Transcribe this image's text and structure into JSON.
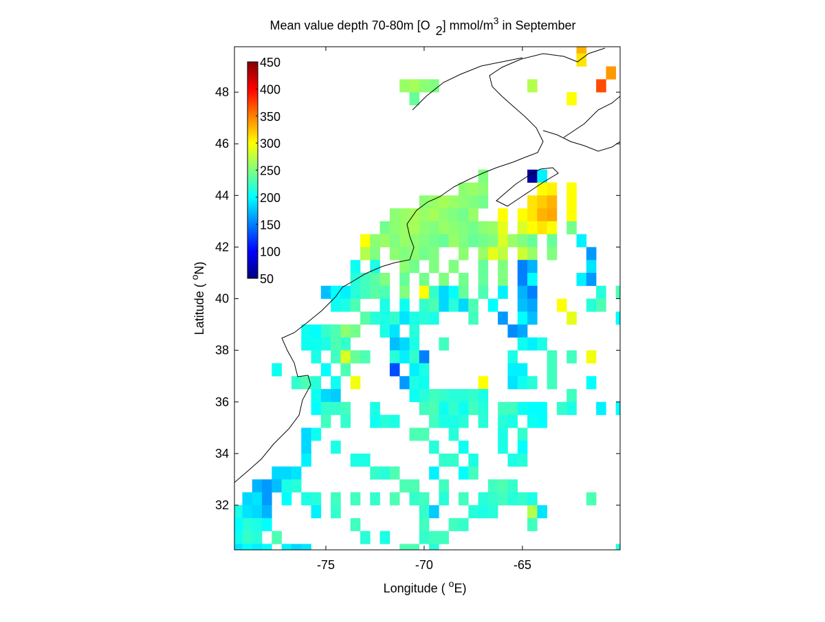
{
  "chart_data": {
    "type": "heatmap",
    "title": {
      "pre": "Mean value depth 70-80m [O",
      "sub": "2",
      "mid": "] mmol/m",
      "sup": "3",
      "post": " in September"
    },
    "x_label": {
      "pre": "Longitude ( ",
      "sup": "o",
      "post": "E)"
    },
    "y_label": {
      "pre": "Latitude ( ",
      "sup": "o",
      "post": "N)"
    },
    "xlim": [
      -79.65,
      -60.03
    ],
    "ylim": [
      30.27,
      49.76
    ],
    "xticks": [
      -75,
      -70,
      -65
    ],
    "yticks": [
      32,
      34,
      36,
      38,
      40,
      42,
      44,
      46,
      48
    ],
    "clim": [
      50,
      450
    ],
    "cticks": [
      50,
      100,
      150,
      200,
      250,
      300,
      350,
      400,
      450
    ],
    "colormap": "jet",
    "rows": [
      {
        "y": 49.75,
        "x": [
          -62
        ],
        "values": [
          330
        ]
      },
      {
        "y": 49.25,
        "x": [
          -62
        ],
        "values": [
          310
        ]
      },
      {
        "y": 48.75,
        "x": [
          -60.5
        ],
        "values": [
          340
        ]
      },
      {
        "y": 48.25,
        "x": [
          -71,
          -70.5,
          -70,
          -69.5,
          -64.5,
          -61
        ],
        "values": [
          260,
          265,
          255,
          250,
          270,
          370
        ]
      },
      {
        "y": 47.75,
        "x": [
          -70.5,
          -62.5
        ],
        "values": [
          240,
          300
        ]
      },
      {
        "y": 44.75,
        "x": [
          -67,
          -64.5,
          -64
        ],
        "values": [
          250,
          60,
          195
        ]
      },
      {
        "y": 44.25,
        "x": [
          -68,
          -67.5,
          -67,
          -64,
          -63.5,
          -62.5
        ],
        "values": [
          255,
          260,
          255,
          300,
          305,
          300
        ]
      },
      {
        "y": 43.75,
        "x": [
          -70,
          -69.5,
          -69,
          -68.5,
          -68,
          -67.5,
          -67,
          -64.5,
          -64,
          -63.5,
          -62.5
        ],
        "values": [
          255,
          260,
          265,
          260,
          255,
          250,
          245,
          310,
          320,
          330,
          300
        ]
      },
      {
        "y": 43.25,
        "x": [
          -71.5,
          -71,
          -70.5,
          -70,
          -69.5,
          -69,
          -68.5,
          -68,
          -67.5,
          -66,
          -65,
          -64.5,
          -64,
          -63.5,
          -62.5
        ],
        "values": [
          255,
          260,
          265,
          260,
          265,
          255,
          250,
          245,
          260,
          300,
          300,
          310,
          330,
          335,
          300
        ]
      },
      {
        "y": 42.75,
        "x": [
          -72,
          -71.5,
          -71,
          -70.5,
          -70,
          -69.5,
          -69,
          -68.5,
          -68,
          -67.5,
          -67,
          -66.5,
          -66,
          -65,
          -64.5,
          -64,
          -63.5,
          -62.5
        ],
        "values": [
          245,
          255,
          260,
          265,
          255,
          250,
          260,
          255,
          250,
          245,
          255,
          260,
          290,
          285,
          300,
          310,
          300,
          245
        ]
      },
      {
        "y": 42.25,
        "x": [
          -73,
          -72.5,
          -72,
          -71.5,
          -71,
          -70.5,
          -70,
          -69.5,
          -69,
          -68.5,
          -68,
          -67.5,
          -67,
          -66.5,
          -66,
          -65.5,
          -65,
          -64.5,
          -63.5,
          -62
        ],
        "values": [
          300,
          255,
          260,
          250,
          260,
          255,
          250,
          245,
          240,
          260,
          250,
          240,
          245,
          250,
          285,
          260,
          250,
          240,
          240,
          195
        ]
      },
      {
        "y": 41.75,
        "x": [
          -73,
          -72.5,
          -71.5,
          -71,
          -70.5,
          -70,
          -69.5,
          -68,
          -67,
          -66.5,
          -66,
          -65,
          -64.5,
          -63.5,
          -61.5
        ],
        "values": [
          270,
          250,
          255,
          250,
          255,
          245,
          250,
          255,
          260,
          290,
          275,
          280,
          260,
          250,
          160
        ]
      },
      {
        "y": 41.25,
        "x": [
          -73.5,
          -72.5,
          -71,
          -70.5,
          -69.5,
          -68.5,
          -67,
          -66,
          -65,
          -64.5,
          -61.5
        ],
        "values": [
          205,
          210,
          255,
          245,
          250,
          250,
          240,
          250,
          150,
          170,
          190
        ]
      },
      {
        "y": 40.75,
        "x": [
          -73.5,
          -73,
          -72.5,
          -72,
          -71,
          -70,
          -69,
          -68,
          -67,
          -66,
          -65,
          -64.5,
          -62,
          -61.5
        ],
        "values": [
          215,
          225,
          235,
          250,
          240,
          245,
          250,
          245,
          240,
          250,
          150,
          200,
          195,
          160
        ]
      },
      {
        "y": 40.25,
        "x": [
          -75,
          -74.5,
          -74,
          -73.5,
          -73,
          -72.5,
          -72,
          -71,
          -70,
          -69.5,
          -69,
          -68.5,
          -68,
          -67,
          -66,
          -65,
          -64.5,
          -61,
          -60
        ],
        "values": [
          175,
          200,
          195,
          215,
          225,
          235,
          230,
          250,
          300,
          220,
          185,
          200,
          240,
          230,
          195,
          170,
          150,
          215,
          230
        ]
      },
      {
        "y": 39.75,
        "x": [
          -74.5,
          -74,
          -73.5,
          -72,
          -71,
          -70,
          -69.5,
          -69,
          -68.5,
          -68,
          -67.5,
          -66.5,
          -65,
          -64.5,
          -63,
          -61.5,
          -61
        ],
        "values": [
          205,
          210,
          230,
          210,
          205,
          220,
          230,
          185,
          215,
          185,
          230,
          200,
          175,
          165,
          300,
          215,
          230
        ]
      },
      {
        "y": 39.25,
        "x": [
          -73,
          -72.5,
          -72,
          -71.5,
          -71,
          -70.5,
          -70,
          -69.5,
          -67.5,
          -66,
          -65,
          -64.5,
          -62.5,
          -60
        ],
        "values": [
          235,
          215,
          210,
          220,
          190,
          210,
          215,
          210,
          225,
          160,
          200,
          175,
          290,
          200
        ]
      },
      {
        "y": 38.75,
        "x": [
          -76,
          -75.5,
          -75,
          -74.5,
          -74,
          -73.5,
          -72,
          -71.5,
          -70.5,
          -65.5,
          -65
        ],
        "values": [
          205,
          200,
          220,
          230,
          255,
          245,
          210,
          190,
          215,
          155,
          165
        ]
      },
      {
        "y": 38.25,
        "x": [
          -76,
          -75.5,
          -75,
          -74.5,
          -74,
          -71.5,
          -71,
          -70.5,
          -69,
          -65,
          -64.5,
          -64
        ],
        "values": [
          205,
          205,
          210,
          230,
          220,
          175,
          185,
          210,
          225,
          205,
          195,
          210
        ]
      },
      {
        "y": 37.75,
        "x": [
          -75.5,
          -74.5,
          -74,
          -73.5,
          -73,
          -71.5,
          -71,
          -70.5,
          -70,
          -65.5,
          -63.5,
          -62.5,
          -61.5
        ],
        "values": [
          210,
          225,
          285,
          240,
          230,
          215,
          195,
          220,
          150,
          210,
          225,
          225,
          295
        ]
      },
      {
        "y": 37.25,
        "x": [
          -77.5,
          -75,
          -74,
          -71.5,
          -70.5,
          -70,
          -65.5,
          -65,
          -63.5
        ],
        "values": [
          205,
          200,
          230,
          130,
          195,
          210,
          195,
          195,
          225
        ]
      },
      {
        "y": 36.75,
        "x": [
          -76.5,
          -76,
          -75.5,
          -74.5,
          -73.5,
          -71,
          -70.5,
          -70,
          -67,
          -65.5,
          -65,
          -64.5,
          -63.5,
          -61.5
        ],
        "values": [
          220,
          230,
          215,
          205,
          295,
          160,
          210,
          205,
          300,
          190,
          205,
          215,
          225,
          200
        ]
      },
      {
        "y": 36.25,
        "x": [
          -75.5,
          -75,
          -74.5,
          -70.5,
          -70,
          -69.5,
          -69,
          -68.5,
          -68,
          -67.5,
          -67,
          -62.5
        ],
        "values": [
          205,
          185,
          180,
          205,
          215,
          225,
          220,
          215,
          215,
          220,
          210,
          225
        ]
      },
      {
        "y": 35.75,
        "x": [
          -75.5,
          -75,
          -74.5,
          -74,
          -72.5,
          -70,
          -69.5,
          -69,
          -68.5,
          -68,
          -67.5,
          -67,
          -66,
          -65.5,
          -65,
          -64.5,
          -64,
          -63,
          -62.5,
          -61,
          -60
        ],
        "values": [
          200,
          220,
          220,
          225,
          210,
          225,
          230,
          205,
          220,
          205,
          225,
          215,
          225,
          225,
          205,
          200,
          200,
          220,
          210,
          195,
          200
        ]
      },
      {
        "y": 35.25,
        "x": [
          -75,
          -74,
          -72.5,
          -72,
          -71.5,
          -69.5,
          -69,
          -68.5,
          -68,
          -67,
          -66,
          -65.5,
          -64.5,
          -64
        ],
        "values": [
          225,
          220,
          205,
          215,
          210,
          225,
          210,
          210,
          215,
          215,
          215,
          210,
          205,
          200
        ]
      },
      {
        "y": 34.75,
        "x": [
          -76,
          -75.5,
          -70.5,
          -70,
          -68.5,
          -66,
          -65
        ],
        "values": [
          185,
          205,
          230,
          230,
          215,
          210,
          220
        ]
      },
      {
        "y": 34.25,
        "x": [
          -76,
          -74.5,
          -69.5,
          -68,
          -66,
          -65
        ],
        "values": [
          185,
          210,
          215,
          205,
          210,
          200
        ]
      },
      {
        "y": 33.75,
        "x": [
          -76,
          -73.5,
          -73,
          -69,
          -68.5,
          -67.5,
          -65.5,
          -65
        ],
        "values": [
          195,
          210,
          210,
          220,
          220,
          210,
          210,
          215
        ]
      },
      {
        "y": 33.25,
        "x": [
          -77.5,
          -77,
          -76.5,
          -72.5,
          -72,
          -71.5,
          -69.5,
          -68,
          -67.5
        ],
        "values": [
          185,
          185,
          190,
          220,
          215,
          230,
          195,
          200,
          225
        ]
      },
      {
        "y": 32.75,
        "x": [
          -78.5,
          -78,
          -77.5,
          -77,
          -76.5,
          -71,
          -70.5,
          -69,
          -66.5,
          -66,
          -65.5
        ],
        "values": [
          170,
          160,
          175,
          210,
          215,
          230,
          230,
          225,
          225,
          230,
          220
        ]
      },
      {
        "y": 32.25,
        "x": [
          -79,
          -78.5,
          -78,
          -77,
          -76,
          -75.5,
          -74.5,
          -73.5,
          -72.5,
          -71.5,
          -70.5,
          -70,
          -69,
          -68,
          -67,
          -66.5,
          -66,
          -65.5,
          -65,
          -64.5,
          -61.5
        ],
        "values": [
          185,
          190,
          160,
          200,
          210,
          215,
          225,
          225,
          220,
          230,
          220,
          225,
          215,
          225,
          215,
          220,
          225,
          215,
          220,
          210,
          230
        ]
      },
      {
        "y": 31.75,
        "x": [
          -79.5,
          -79,
          -78.5,
          -78,
          -75.5,
          -74.5,
          -70,
          -69.5,
          -67.5,
          -67,
          -66.5,
          -64.5,
          -64
        ],
        "values": [
          210,
          190,
          185,
          170,
          195,
          220,
          220,
          180,
          215,
          210,
          215,
          270,
          190
        ]
      },
      {
        "y": 31.25,
        "x": [
          -79.5,
          -79,
          -78.5,
          -78,
          -73.5,
          -70,
          -68.5,
          -68,
          -64.5
        ],
        "values": [
          200,
          215,
          210,
          200,
          225,
          225,
          225,
          220,
          225
        ]
      },
      {
        "y": 30.75,
        "x": [
          -79.5,
          -79,
          -78.5,
          -77.5,
          -73,
          -72,
          -70,
          -69.5,
          -69
        ],
        "values": [
          205,
          220,
          215,
          230,
          215,
          210,
          220,
          225,
          225
        ]
      },
      {
        "y": 30.25,
        "x": [
          -79.5,
          -79,
          -78.5,
          -78,
          -77,
          -76.5,
          -76,
          -71,
          -70.5,
          -69.5,
          -60
        ],
        "values": [
          190,
          200,
          195,
          200,
          195,
          185,
          190,
          230,
          230,
          215,
          215
        ]
      }
    ]
  }
}
